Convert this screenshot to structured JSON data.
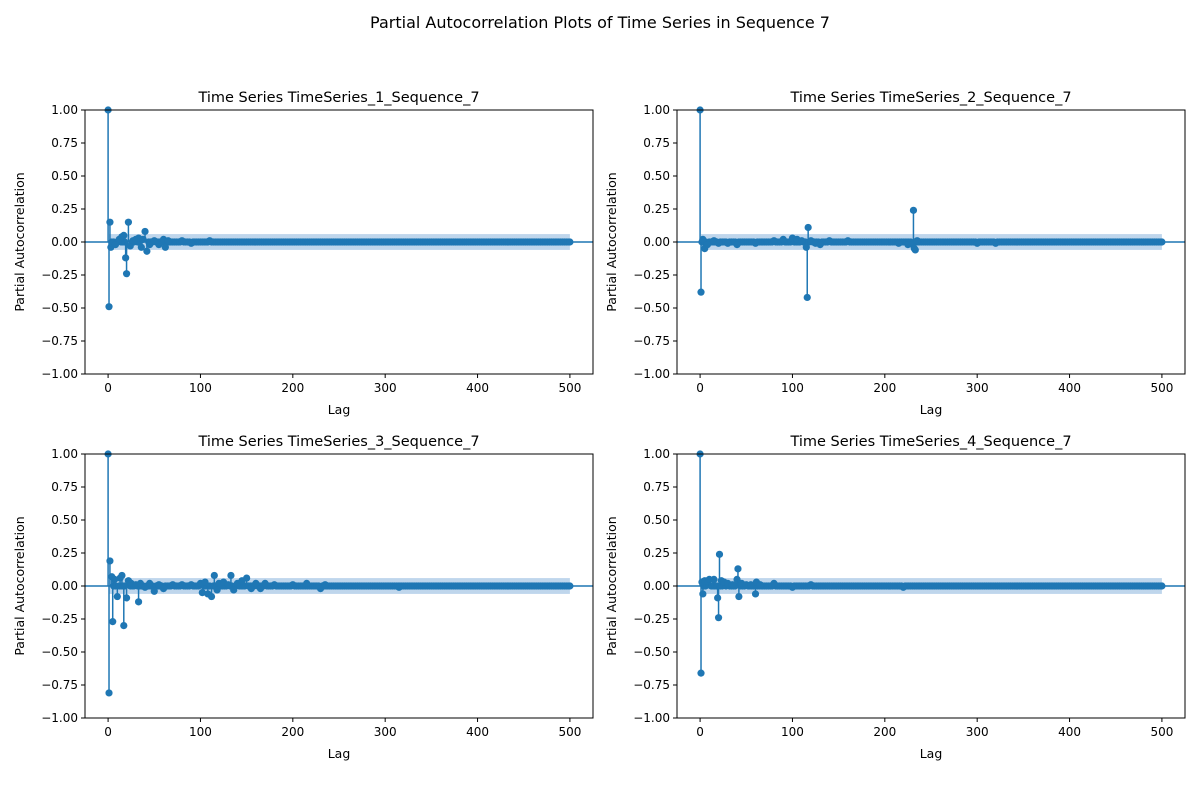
{
  "figure": {
    "suptitle": "Partial Autocorrelation Plots of Time Series in Sequence 7"
  },
  "colors": {
    "stem": "#1f77b4",
    "band": "#a9c8e6",
    "axis": "#000000"
  },
  "chart_data": [
    {
      "type": "scatter",
      "style": "stem",
      "title": "Time Series TimeSeries_1_Sequence_7",
      "xlabel": "Lag",
      "ylabel": "Partial Autocorrelation",
      "xlim": [
        -25,
        525
      ],
      "ylim": [
        -1.0,
        1.0
      ],
      "xticks": [
        0,
        100,
        200,
        300,
        400,
        500
      ],
      "yticks": [
        -1.0,
        -0.75,
        -0.5,
        -0.25,
        0.0,
        0.25,
        0.5,
        0.75,
        1.0
      ],
      "ytick_labels": [
        "−1.00",
        "−0.75",
        "−0.50",
        "−0.25",
        "0.00",
        "0.25",
        "0.50",
        "0.75",
        "1.00"
      ],
      "max_lag": 500,
      "confidence_band": 0.06,
      "points": [
        [
          0,
          1.0
        ],
        [
          1,
          -0.49
        ],
        [
          2,
          0.15
        ],
        [
          3,
          -0.04
        ],
        [
          5,
          -0.01
        ],
        [
          8,
          -0.02
        ],
        [
          12,
          0.02
        ],
        [
          15,
          0.04
        ],
        [
          17,
          0.05
        ],
        [
          19,
          -0.12
        ],
        [
          20,
          -0.24
        ],
        [
          22,
          0.15
        ],
        [
          24,
          -0.03
        ],
        [
          27,
          0.01
        ],
        [
          30,
          0.02
        ],
        [
          33,
          0.03
        ],
        [
          36,
          -0.04
        ],
        [
          38,
          0.02
        ],
        [
          40,
          0.08
        ],
        [
          42,
          -0.07
        ],
        [
          45,
          -0.02
        ],
        [
          50,
          0.01
        ],
        [
          55,
          -0.02
        ],
        [
          60,
          0.02
        ],
        [
          62,
          -0.04
        ],
        [
          65,
          0.01
        ],
        [
          80,
          0.01
        ],
        [
          90,
          -0.01
        ],
        [
          110,
          0.01
        ]
      ]
    },
    {
      "type": "scatter",
      "style": "stem",
      "title": "Time Series TimeSeries_2_Sequence_7",
      "xlabel": "Lag",
      "ylabel": "Partial Autocorrelation",
      "xlim": [
        -25,
        525
      ],
      "ylim": [
        -1.0,
        1.0
      ],
      "xticks": [
        0,
        100,
        200,
        300,
        400,
        500
      ],
      "yticks": [
        -1.0,
        -0.75,
        -0.5,
        -0.25,
        0.0,
        0.25,
        0.5,
        0.75,
        1.0
      ],
      "ytick_labels": [
        "−1.00",
        "−0.75",
        "−0.50",
        "−0.25",
        "0.00",
        "0.25",
        "0.50",
        "0.75",
        "1.00"
      ],
      "max_lag": 500,
      "confidence_band": 0.06,
      "points": [
        [
          0,
          1.0
        ],
        [
          1,
          -0.38
        ],
        [
          3,
          0.02
        ],
        [
          5,
          -0.05
        ],
        [
          8,
          -0.02
        ],
        [
          15,
          0.01
        ],
        [
          20,
          -0.01
        ],
        [
          30,
          -0.01
        ],
        [
          40,
          -0.02
        ],
        [
          60,
          -0.01
        ],
        [
          80,
          0.01
        ],
        [
          90,
          0.02
        ],
        [
          100,
          0.03
        ],
        [
          105,
          0.02
        ],
        [
          110,
          0.01
        ],
        [
          115,
          -0.04
        ],
        [
          116,
          -0.42
        ],
        [
          117,
          0.11
        ],
        [
          120,
          0.01
        ],
        [
          125,
          -0.01
        ],
        [
          130,
          -0.02
        ],
        [
          140,
          0.01
        ],
        [
          160,
          0.01
        ],
        [
          200,
          0.0
        ],
        [
          215,
          -0.01
        ],
        [
          225,
          -0.02
        ],
        [
          230,
          -0.02
        ],
        [
          231,
          0.24
        ],
        [
          232,
          -0.05
        ],
        [
          233,
          -0.06
        ],
        [
          235,
          0.01
        ],
        [
          260,
          0.0
        ],
        [
          300,
          -0.01
        ],
        [
          320,
          -0.01
        ]
      ]
    },
    {
      "type": "scatter",
      "style": "stem",
      "title": "Time Series TimeSeries_3_Sequence_7",
      "xlabel": "Lag",
      "ylabel": "Partial Autocorrelation",
      "xlim": [
        -25,
        525
      ],
      "ylim": [
        -1.0,
        1.0
      ],
      "xticks": [
        0,
        100,
        200,
        300,
        400,
        500
      ],
      "yticks": [
        -1.0,
        -0.75,
        -0.5,
        -0.25,
        0.0,
        0.25,
        0.5,
        0.75,
        1.0
      ],
      "ytick_labels": [
        "−1.00",
        "−0.75",
        "−0.50",
        "−0.25",
        "0.00",
        "0.25",
        "0.50",
        "0.75",
        "1.00"
      ],
      "max_lag": 500,
      "confidence_band": 0.06,
      "points": [
        [
          0,
          1.0
        ],
        [
          1,
          -0.81
        ],
        [
          2,
          0.19
        ],
        [
          4,
          0.07
        ],
        [
          5,
          -0.27
        ],
        [
          7,
          0.05
        ],
        [
          10,
          -0.08
        ],
        [
          13,
          0.06
        ],
        [
          15,
          0.08
        ],
        [
          17,
          -0.3
        ],
        [
          20,
          -0.09
        ],
        [
          22,
          0.04
        ],
        [
          25,
          0.02
        ],
        [
          30,
          0.01
        ],
        [
          33,
          -0.12
        ],
        [
          35,
          0.02
        ],
        [
          40,
          -0.01
        ],
        [
          45,
          0.02
        ],
        [
          50,
          -0.04
        ],
        [
          55,
          0.01
        ],
        [
          60,
          -0.02
        ],
        [
          70,
          0.01
        ],
        [
          80,
          0.01
        ],
        [
          90,
          0.01
        ],
        [
          100,
          0.02
        ],
        [
          102,
          -0.05
        ],
        [
          105,
          0.03
        ],
        [
          108,
          -0.06
        ],
        [
          112,
          -0.08
        ],
        [
          115,
          0.08
        ],
        [
          118,
          -0.03
        ],
        [
          120,
          0.02
        ],
        [
          125,
          0.03
        ],
        [
          130,
          0.01
        ],
        [
          133,
          0.08
        ],
        [
          136,
          -0.03
        ],
        [
          140,
          0.02
        ],
        [
          145,
          0.04
        ],
        [
          150,
          0.06
        ],
        [
          155,
          -0.02
        ],
        [
          160,
          0.02
        ],
        [
          165,
          -0.02
        ],
        [
          170,
          0.02
        ],
        [
          180,
          0.01
        ],
        [
          200,
          0.01
        ],
        [
          215,
          0.02
        ],
        [
          230,
          -0.02
        ],
        [
          235,
          0.01
        ],
        [
          260,
          0.0
        ],
        [
          315,
          -0.01
        ]
      ]
    },
    {
      "type": "scatter",
      "style": "stem",
      "title": "Time Series TimeSeries_4_Sequence_7",
      "xlabel": "Lag",
      "ylabel": "Partial Autocorrelation",
      "xlim": [
        -25,
        525
      ],
      "ylim": [
        -1.0,
        1.0
      ],
      "xticks": [
        0,
        100,
        200,
        300,
        400,
        500
      ],
      "yticks": [
        -1.0,
        -0.75,
        -0.5,
        -0.25,
        0.0,
        0.25,
        0.5,
        0.75,
        1.0
      ],
      "ytick_labels": [
        "−1.00",
        "−0.75",
        "−0.50",
        "−0.25",
        "0.00",
        "0.25",
        "0.50",
        "0.75",
        "1.00"
      ],
      "max_lag": 500,
      "confidence_band": 0.06,
      "points": [
        [
          0,
          1.0
        ],
        [
          1,
          -0.66
        ],
        [
          2,
          0.03
        ],
        [
          3,
          -0.06
        ],
        [
          5,
          0.04
        ],
        [
          8,
          0.04
        ],
        [
          10,
          0.05
        ],
        [
          15,
          0.05
        ],
        [
          19,
          -0.09
        ],
        [
          20,
          -0.24
        ],
        [
          21,
          0.24
        ],
        [
          23,
          0.04
        ],
        [
          26,
          0.03
        ],
        [
          30,
          0.02
        ],
        [
          35,
          0.01
        ],
        [
          40,
          0.05
        ],
        [
          41,
          0.13
        ],
        [
          42,
          -0.08
        ],
        [
          45,
          0.02
        ],
        [
          50,
          0.01
        ],
        [
          55,
          0.01
        ],
        [
          60,
          -0.06
        ],
        [
          61,
          0.03
        ],
        [
          65,
          0.01
        ],
        [
          80,
          0.02
        ],
        [
          100,
          -0.01
        ],
        [
          120,
          0.01
        ],
        [
          140,
          0.0
        ],
        [
          220,
          -0.01
        ]
      ]
    }
  ]
}
